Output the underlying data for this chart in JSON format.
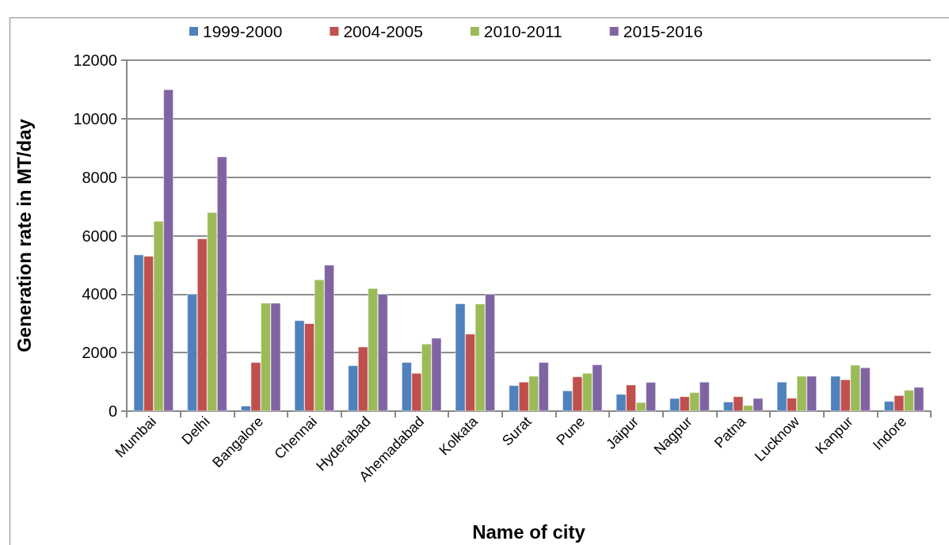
{
  "chart_data": {
    "type": "bar",
    "xlabel": "Name of city",
    "ylabel": "Generation rate in MT/day",
    "categories": [
      "Mumbai",
      "Delhi",
      "Bangalore",
      "Chennai",
      "Hyderabad",
      "Ahemadabad",
      "Kolkata",
      "Surat",
      "Pune",
      "Jaipur",
      "Nagpur",
      "Patna",
      "Lucknow",
      "Kanpur",
      "Indore"
    ],
    "series": [
      {
        "name": "1999-2000",
        "color": "#4f81bd",
        "values": [
          5350,
          4000,
          180,
          3100,
          1560,
          1670,
          3680,
          880,
          700,
          580,
          440,
          320,
          1000,
          1200,
          340
        ]
      },
      {
        "name": "2004-2005",
        "color": "#c0504d",
        "values": [
          5300,
          5900,
          1670,
          3000,
          2200,
          1300,
          2640,
          1000,
          1180,
          900,
          500,
          500,
          450,
          1080,
          540
        ]
      },
      {
        "name": "2010-2011",
        "color": "#9bbb59",
        "values": [
          6500,
          6800,
          3700,
          4500,
          4200,
          2300,
          3670,
          1200,
          1300,
          300,
          640,
          200,
          1200,
          1580,
          720
        ]
      },
      {
        "name": "2015-2016",
        "color": "#8064a2",
        "values": [
          11000,
          8700,
          3700,
          5000,
          4000,
          2500,
          4000,
          1670,
          1590,
          990,
          1000,
          440,
          1200,
          1490,
          820
        ]
      }
    ],
    "ylim": [
      0,
      12000
    ],
    "yticks": [
      0,
      2000,
      4000,
      6000,
      8000,
      10000,
      12000
    ],
    "grid": "y",
    "legend": "top"
  }
}
